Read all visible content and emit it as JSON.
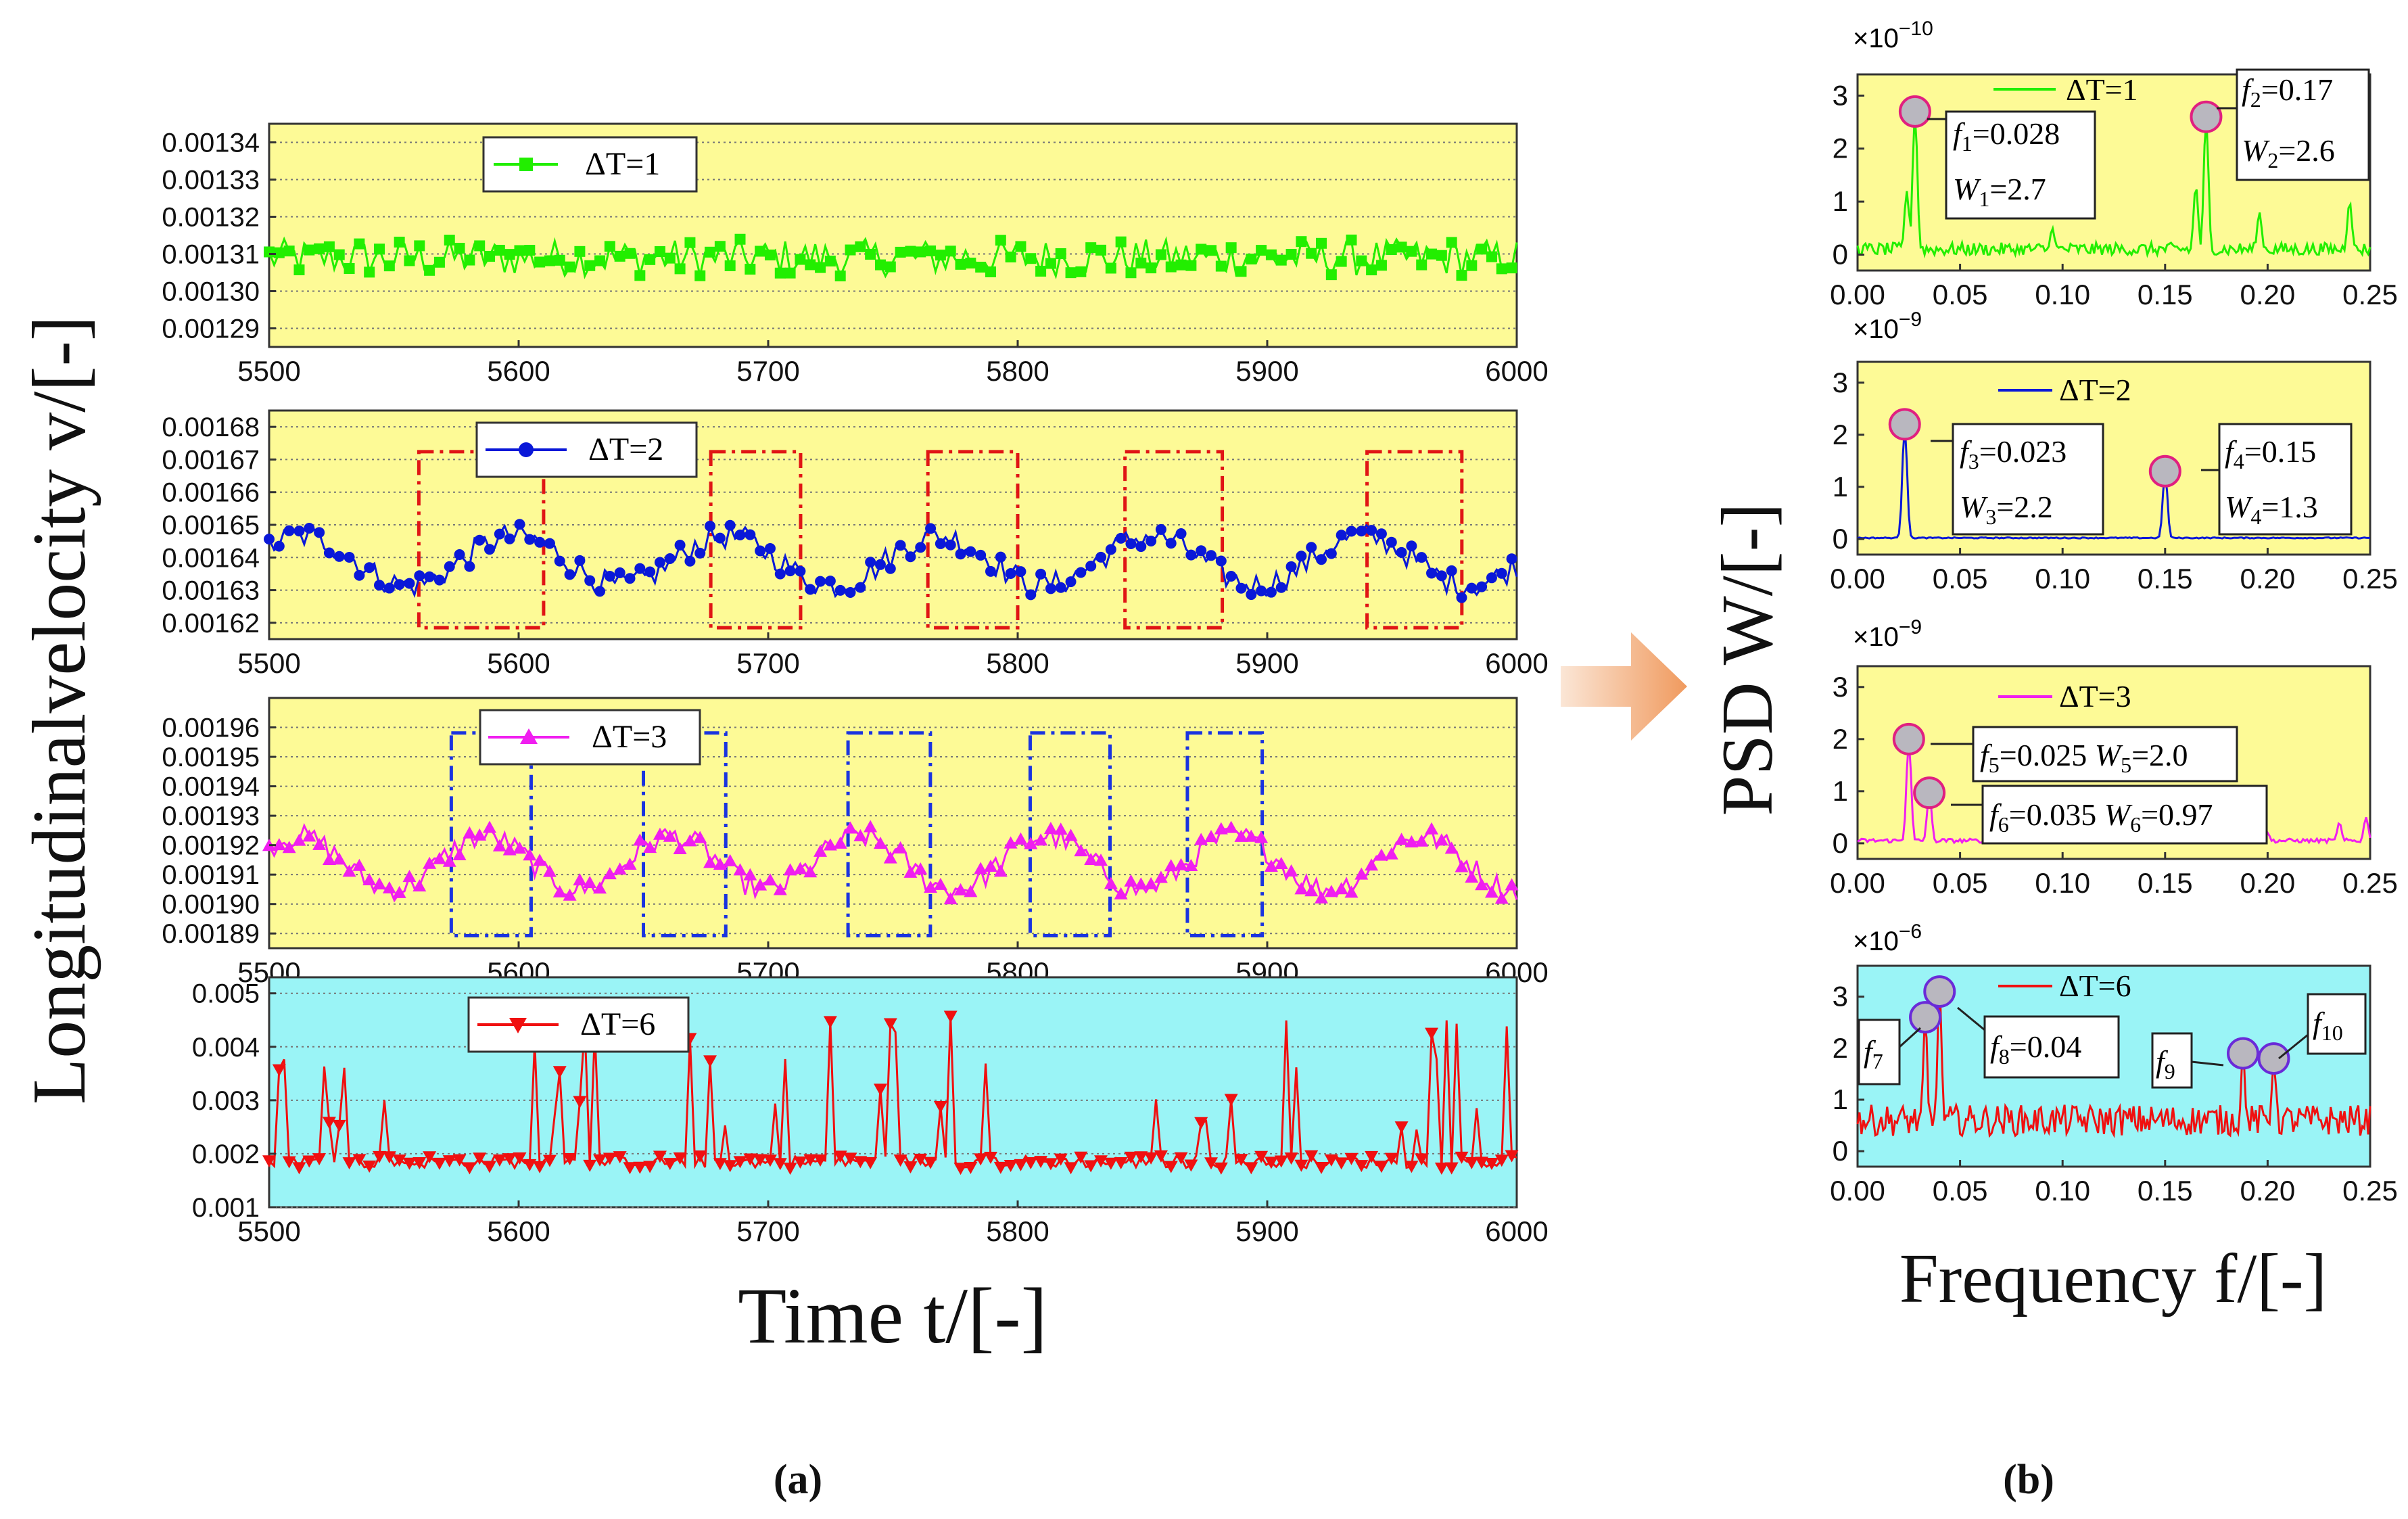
{
  "figure": {
    "left_ylabel": "Longitudinalvelocity v/[-]",
    "left_xlabel": "Time t/[-]",
    "right_ylabel": "PSD W/[-]",
    "right_xlabel": "Frequency f/[-]",
    "caption_a": "(a)",
    "caption_b": "(b)"
  },
  "chart_data": [
    {
      "type": "line",
      "id": "ts1",
      "legend": "ΔT=1",
      "color": "#22ee00",
      "marker": "square",
      "background": "#fdfa96",
      "xlim": [
        5500,
        6000
      ],
      "ylim": [
        0.001285,
        0.001345
      ],
      "xticks": [
        5500,
        5600,
        5700,
        5800,
        5900,
        6000
      ],
      "yticks": [
        0.00129,
        0.0013,
        0.00131,
        0.00132,
        0.00133,
        0.00134
      ],
      "ytick_labels": [
        "0.00129",
        "0.00130",
        "0.00131",
        "0.00132",
        "0.00133",
        "0.00134"
      ],
      "mean": 0.001309,
      "amplitude": 4e-06,
      "noise": 5e-06,
      "n_points": 250
    },
    {
      "type": "line",
      "id": "ts2",
      "legend": "ΔT=2",
      "color": "#0a18d8",
      "marker": "circle",
      "background": "#fdfa96",
      "xlim": [
        5500,
        6000
      ],
      "ylim": [
        0.001615,
        0.001685
      ],
      "xticks": [
        5500,
        5600,
        5700,
        5800,
        5900,
        6000
      ],
      "yticks": [
        0.00162,
        0.00163,
        0.00164,
        0.00165,
        0.00166,
        0.00167,
        0.00168
      ],
      "ytick_labels": [
        "0.00162",
        "0.00163",
        "0.00164",
        "0.00165",
        "0.00166",
        "0.00167",
        "0.00168"
      ],
      "mean": 0.001639,
      "amplitude": 7.5e-06,
      "period": 85,
      "noise": 4e-06,
      "n_points": 250,
      "highlight_boxes": [
        [
          5560,
          5610
        ],
        [
          5677,
          5713
        ],
        [
          5764,
          5800
        ],
        [
          5843,
          5882
        ],
        [
          5940,
          5978
        ]
      ]
    },
    {
      "type": "line",
      "id": "ts3",
      "legend": "ΔT=3",
      "color": "#f01ef0",
      "marker": "triangle-up",
      "background": "#fdfa96",
      "xlim": [
        5500,
        6000
      ],
      "ylim": [
        0.001885,
        0.00197
      ],
      "xticks": [
        5500,
        5600,
        5700,
        5800,
        5900,
        6000
      ],
      "yticks": [
        0.00189,
        0.0019,
        0.00191,
        0.00192,
        0.00193,
        0.00194,
        0.00195,
        0.00196
      ],
      "ytick_labels": [
        "0.00189",
        "0.00190",
        "0.00191",
        "0.00192",
        "0.00193",
        "0.00194",
        "0.00195",
        "0.00196"
      ],
      "mean": 0.001914,
      "amplitude": 9e-06,
      "period": 75,
      "noise": 4e-06,
      "n_points": 250,
      "highlight_boxes": [
        [
          5573,
          5605
        ],
        [
          5650,
          5683
        ],
        [
          5732,
          5765
        ],
        [
          5805,
          5837
        ],
        [
          5868,
          5898
        ]
      ]
    },
    {
      "type": "line",
      "id": "ts4",
      "legend": "ΔT=6",
      "color": "#f01010",
      "marker": "triangle-down",
      "background": "#9af4f6",
      "xlim": [
        5500,
        6000
      ],
      "ylim": [
        0.001,
        0.0053
      ],
      "xticks": [
        5500,
        5600,
        5700,
        5800,
        5900,
        6000
      ],
      "yticks": [
        0.001,
        0.002,
        0.003,
        0.004,
        0.005
      ],
      "ytick_labels": [
        "0.001",
        "0.002",
        "0.003",
        "0.004",
        "0.005"
      ],
      "mean": 0.00185,
      "noise": 0.00012,
      "n_points": 250
    },
    {
      "type": "line",
      "id": "psd1",
      "legend": "ΔT=1",
      "color": "#22ee00",
      "background": "#fdfa96",
      "scale_label": "×10",
      "scale_exp": "−10",
      "xlim": [
        0,
        0.25
      ],
      "ylim": [
        -0.3,
        3.4
      ],
      "yticks": [
        0,
        1,
        2,
        3
      ],
      "xticks": [
        0,
        0.05,
        0.1,
        0.15,
        0.2,
        0.25
      ],
      "xtick_labels": [
        "0.00",
        "0.05",
        "0.10",
        "0.15",
        "0.20",
        "0.25"
      ],
      "peaks": [
        {
          "f": 0.028,
          "W": 2.7
        },
        {
          "f": 0.17,
          "W": 2.6
        }
      ],
      "minor_peaks": [
        {
          "f": 0.024,
          "W": 1.2
        },
        {
          "f": 0.095,
          "W": 0.5
        },
        {
          "f": 0.165,
          "W": 1.3
        },
        {
          "f": 0.196,
          "W": 0.8
        },
        {
          "f": 0.24,
          "W": 1.0
        }
      ],
      "baseline": 0.1,
      "noise": 0.25,
      "annotations": [
        {
          "sym": "f",
          "sub": "1",
          "val": "=0.028",
          "sym2": "W",
          "sub2": "1",
          "val2": "=2.7"
        },
        {
          "sym": "f",
          "sub": "2",
          "val": "=0.17",
          "sym2": "W",
          "sub2": "2",
          "val2": "=2.6"
        }
      ]
    },
    {
      "type": "line",
      "id": "psd2",
      "legend": "ΔT=2",
      "color": "#0a18d8",
      "background": "#fdfa96",
      "scale_label": "×10",
      "scale_exp": "−9",
      "xlim": [
        0,
        0.25
      ],
      "ylim": [
        -0.3,
        3.4
      ],
      "yticks": [
        0,
        1,
        2,
        3
      ],
      "xticks": [
        0,
        0.05,
        0.1,
        0.15,
        0.2,
        0.25
      ],
      "xtick_labels": [
        "0.00",
        "0.05",
        "0.10",
        "0.15",
        "0.20",
        "0.25"
      ],
      "peaks": [
        {
          "f": 0.023,
          "W": 2.2
        },
        {
          "f": 0.15,
          "W": 1.3
        }
      ],
      "minor_peaks": [],
      "baseline": 0.02,
      "noise": 0.02,
      "annotations": [
        {
          "sym": "f",
          "sub": "3",
          "val": "=0.023",
          "sym2": "W",
          "sub2": "3",
          "val2": "=2.2"
        },
        {
          "sym": "f",
          "sub": "4",
          "val": "=0.15",
          "sym2": "W",
          "sub2": "4",
          "val2": "=1.3"
        }
      ]
    },
    {
      "type": "line",
      "id": "psd3",
      "legend": "ΔT=3",
      "color": "#f01ef0",
      "background": "#fdfa96",
      "scale_label": "×10",
      "scale_exp": "−9",
      "xlim": [
        0,
        0.25
      ],
      "ylim": [
        -0.3,
        3.4
      ],
      "yticks": [
        0,
        1,
        2,
        3
      ],
      "xticks": [
        0,
        0.05,
        0.1,
        0.15,
        0.2,
        0.25
      ],
      "xtick_labels": [
        "0.00",
        "0.05",
        "0.10",
        "0.15",
        "0.20",
        "0.25"
      ],
      "peaks": [
        {
          "f": 0.025,
          "W": 2.0
        },
        {
          "f": 0.035,
          "W": 0.97
        }
      ],
      "minor_peaks": [
        {
          "f": 0.2,
          "W": 0.2
        },
        {
          "f": 0.235,
          "W": 0.4
        },
        {
          "f": 0.248,
          "W": 0.5
        }
      ],
      "baseline": 0.05,
      "noise": 0.08,
      "annotations": [
        {
          "sym": "f",
          "sub": "5",
          "val": "=0.025 ",
          "sym2": "W",
          "sub2": "5",
          "val2": "=2.0"
        },
        {
          "sym": "f",
          "sub": "6",
          "val": "=0.035 ",
          "sym2": "W",
          "sub2": "6",
          "val2": "=0.97"
        }
      ]
    },
    {
      "type": "line",
      "id": "psd4",
      "legend": "ΔT=6",
      "color": "#f01010",
      "background": "#9af4f6",
      "scale_label": "×10",
      "scale_exp": "−6",
      "xlim": [
        0,
        0.25
      ],
      "ylim": [
        -0.3,
        3.6
      ],
      "yticks": [
        0,
        1,
        2,
        3
      ],
      "xticks": [
        0,
        0.05,
        0.1,
        0.15,
        0.2,
        0.25
      ],
      "xtick_labels": [
        "0.00",
        "0.05",
        "0.10",
        "0.15",
        "0.20",
        "0.25"
      ],
      "peaks": [
        {
          "f": 0.033,
          "W": 2.6
        },
        {
          "f": 0.04,
          "W": 3.1
        },
        {
          "f": 0.188,
          "W": 1.9
        },
        {
          "f": 0.203,
          "W": 1.8
        }
      ],
      "minor_peaks": [],
      "baseline": 0.6,
      "noise": 0.6,
      "annotations": [
        {
          "sym": "f",
          "sub": "7"
        },
        {
          "sym": "f",
          "sub": "8",
          "val": "=0.04"
        },
        {
          "sym": "f",
          "sub": "9"
        },
        {
          "sym": "f",
          "sub": "10"
        }
      ]
    }
  ]
}
